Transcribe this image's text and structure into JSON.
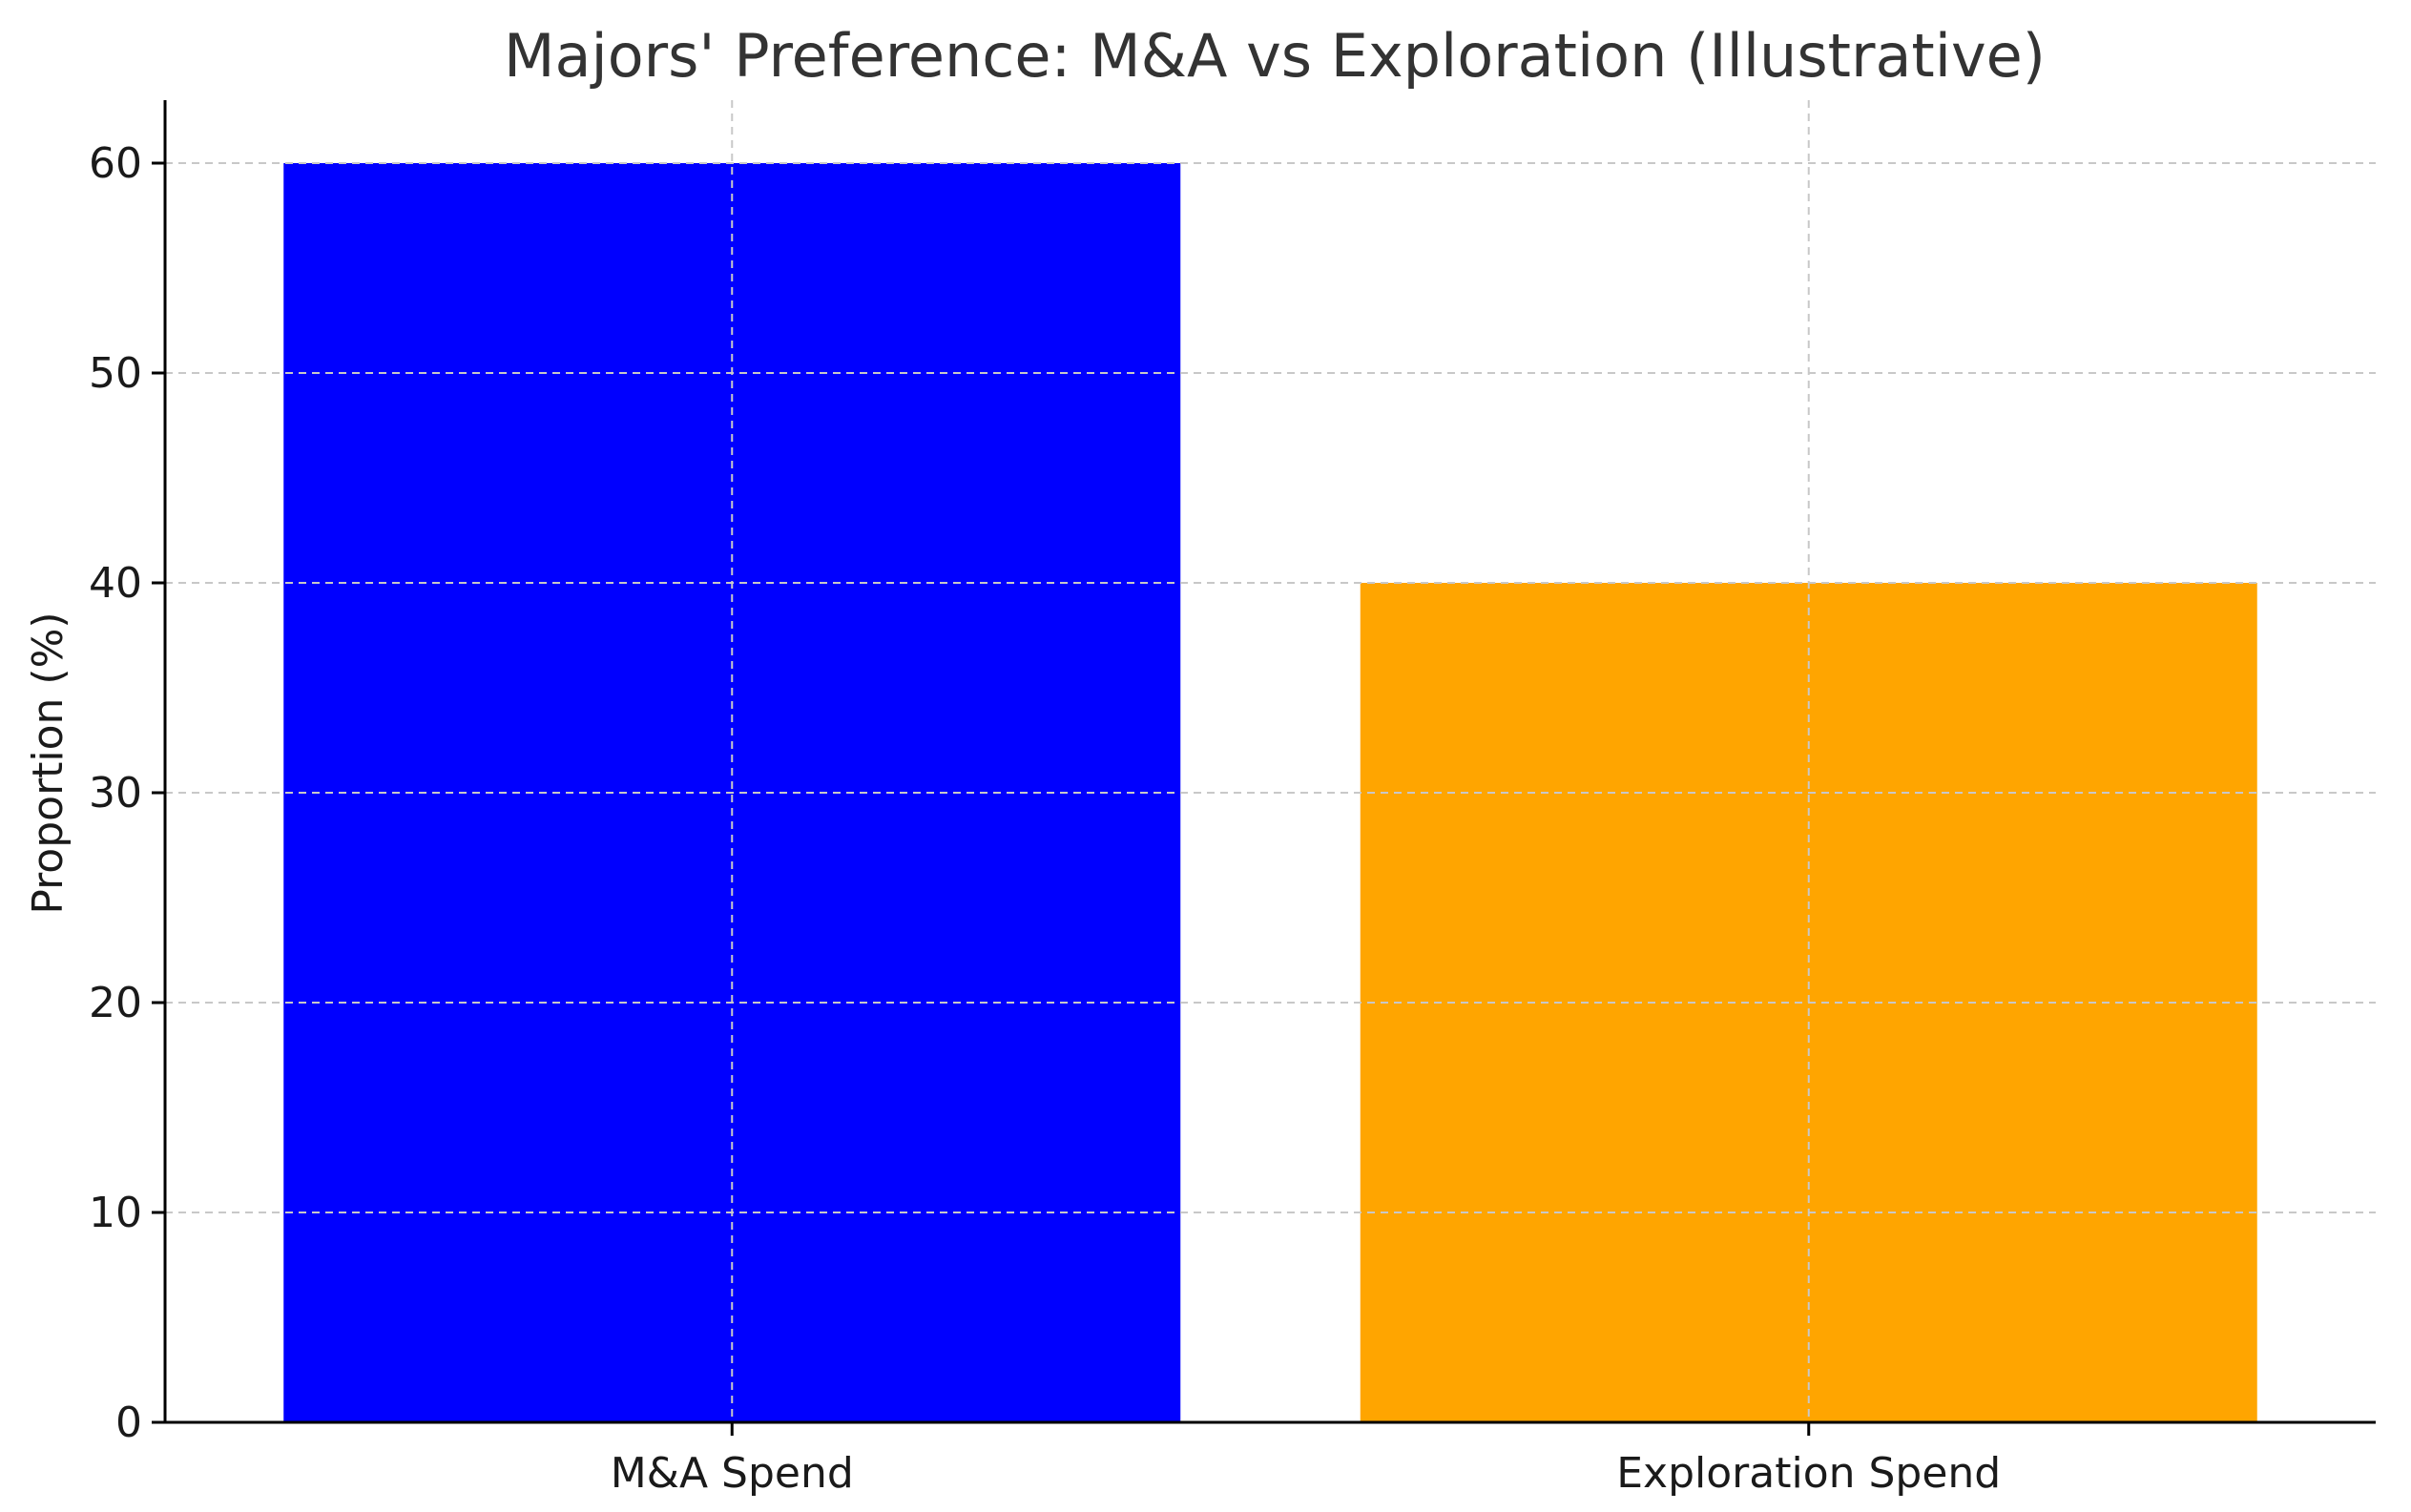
{
  "chart_data": {
    "type": "bar",
    "title": "Majors' Preference: M&A vs Exploration (Illustrative)",
    "xlabel": "",
    "ylabel": "Proportion (%)",
    "categories": [
      "M&A Spend",
      "Exploration Spend"
    ],
    "values": [
      60,
      40
    ],
    "colors": [
      "#0000ff",
      "#ffa500"
    ],
    "ylim": [
      0,
      63
    ],
    "yticks": [
      0,
      10,
      20,
      30,
      40,
      50,
      60
    ],
    "grid": true
  }
}
